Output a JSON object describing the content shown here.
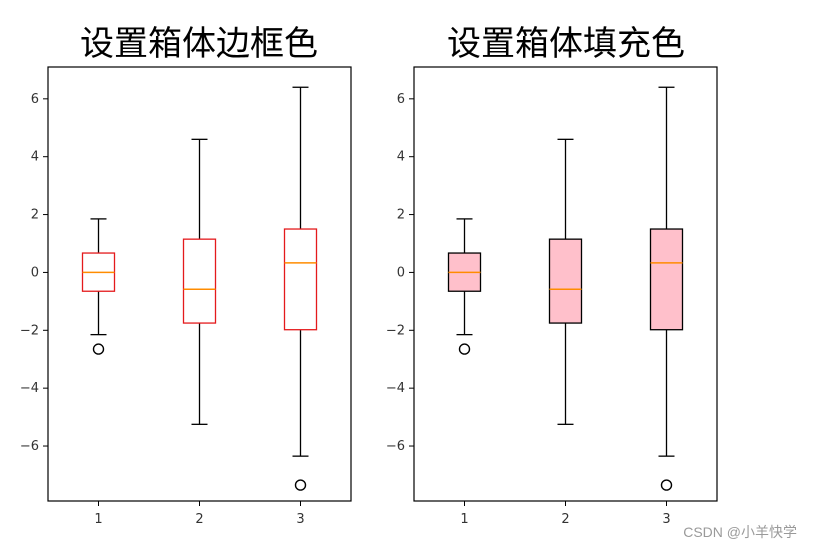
{
  "chart_data": [
    {
      "type": "box",
      "title": "设置箱体边框色",
      "categories": [
        "1",
        "2",
        "3"
      ],
      "ylim": [
        -7.9,
        7.1
      ],
      "yticks": [
        -6,
        -4,
        -2,
        0,
        2,
        4,
        6
      ],
      "box_edge_color": "#e41a1c",
      "box_fill_color": "none",
      "median_color": "#ff8c00",
      "whisker_color": "#000000",
      "series": [
        {
          "category": "1",
          "whislo": -2.15,
          "q1": -0.65,
          "median": 0.0,
          "q3": 0.67,
          "whishi": 1.85,
          "fliers": [
            -2.65
          ]
        },
        {
          "category": "2",
          "whislo": -5.25,
          "q1": -1.75,
          "median": -0.58,
          "q3": 1.15,
          "whishi": 4.6,
          "fliers": []
        },
        {
          "category": "3",
          "whislo": -6.35,
          "q1": -1.98,
          "median": 0.33,
          "q3": 1.5,
          "whishi": 6.4,
          "fliers": [
            -7.35
          ]
        }
      ]
    },
    {
      "type": "box",
      "title": "设置箱体填充色",
      "categories": [
        "1",
        "2",
        "3"
      ],
      "ylim": [
        -7.9,
        7.1
      ],
      "yticks": [
        -6,
        -4,
        -2,
        0,
        2,
        4,
        6
      ],
      "box_edge_color": "#000000",
      "box_fill_color": "#ffc0cb",
      "median_color": "#ff8c00",
      "whisker_color": "#000000",
      "series": [
        {
          "category": "1",
          "whislo": -2.15,
          "q1": -0.65,
          "median": 0.0,
          "q3": 0.67,
          "whishi": 1.85,
          "fliers": [
            -2.65
          ]
        },
        {
          "category": "2",
          "whislo": -5.25,
          "q1": -1.75,
          "median": -0.58,
          "q3": 1.15,
          "whishi": 4.6,
          "fliers": []
        },
        {
          "category": "3",
          "whislo": -6.35,
          "q1": -1.98,
          "median": 0.33,
          "q3": 1.5,
          "whishi": 6.4,
          "fliers": [
            -7.35
          ]
        }
      ]
    }
  ],
  "watermark": "CSDN @小羊快学"
}
